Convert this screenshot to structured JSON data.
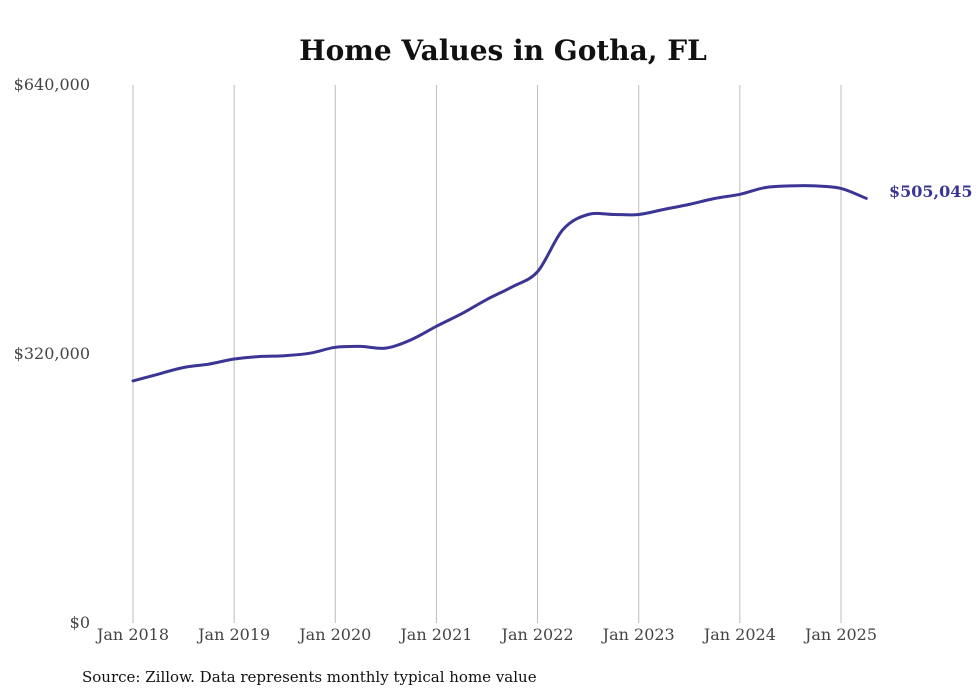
{
  "chart_data": {
    "type": "line",
    "title": "Home Values in Gotha, FL",
    "xlabel": "",
    "ylabel": "",
    "ylim": [
      0,
      640000
    ],
    "y_ticks": [
      "$0",
      "$320,000",
      "$640,000"
    ],
    "x_ticks": [
      "Jan 2018",
      "Jan 2019",
      "Jan 2020",
      "Jan 2021",
      "Jan 2022",
      "Jan 2023",
      "Jan 2024",
      "Jan 2025"
    ],
    "grid": "vertical",
    "legend": "none",
    "end_label": "$505,045",
    "series": [
      {
        "color": "#3b3594",
        "x": [
          "2018-01",
          "2018-04",
          "2018-07",
          "2018-10",
          "2019-01",
          "2019-04",
          "2019-07",
          "2019-10",
          "2020-01",
          "2020-04",
          "2020-07",
          "2020-10",
          "2021-01",
          "2021-04",
          "2021-07",
          "2021-10",
          "2022-01",
          "2022-04",
          "2022-07",
          "2022-10",
          "2023-01",
          "2023-04",
          "2023-07",
          "2023-10",
          "2024-01",
          "2024-04",
          "2024-07",
          "2024-10",
          "2025-01",
          "2025-04"
        ],
        "values": [
          288000,
          296000,
          304000,
          308000,
          314000,
          317000,
          318000,
          321000,
          328000,
          329000,
          327000,
          337000,
          353000,
          368000,
          385000,
          400000,
          418000,
          468000,
          486000,
          486000,
          486000,
          492000,
          498000,
          505000,
          510000,
          518000,
          520000,
          520000,
          517000,
          505045
        ]
      }
    ]
  },
  "source_text": "Source: Zillow. Data represents monthly typical home value"
}
